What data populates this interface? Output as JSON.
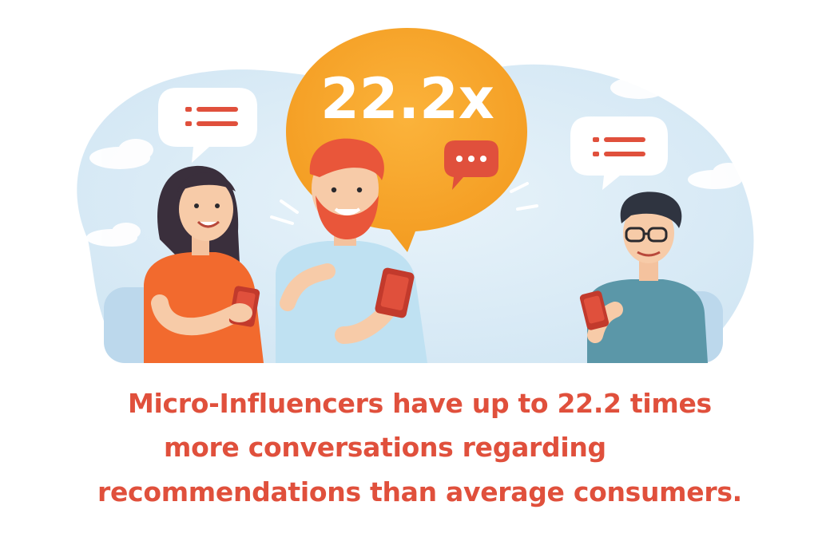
{
  "headline_stat": "22.2x",
  "caption": {
    "line1": "Micro-Influencers have up to 22.2 times",
    "line2": "more conversations regarding",
    "line3": "recommendations than average consumers."
  },
  "colors": {
    "accent_red": "#e0503c",
    "bubble_orange": "#f5a623",
    "sky_blue": "#dcecf7",
    "text_red": "#e0503c"
  },
  "icons": [
    "list-icon",
    "ellipsis-icon",
    "smartphone-icon"
  ]
}
